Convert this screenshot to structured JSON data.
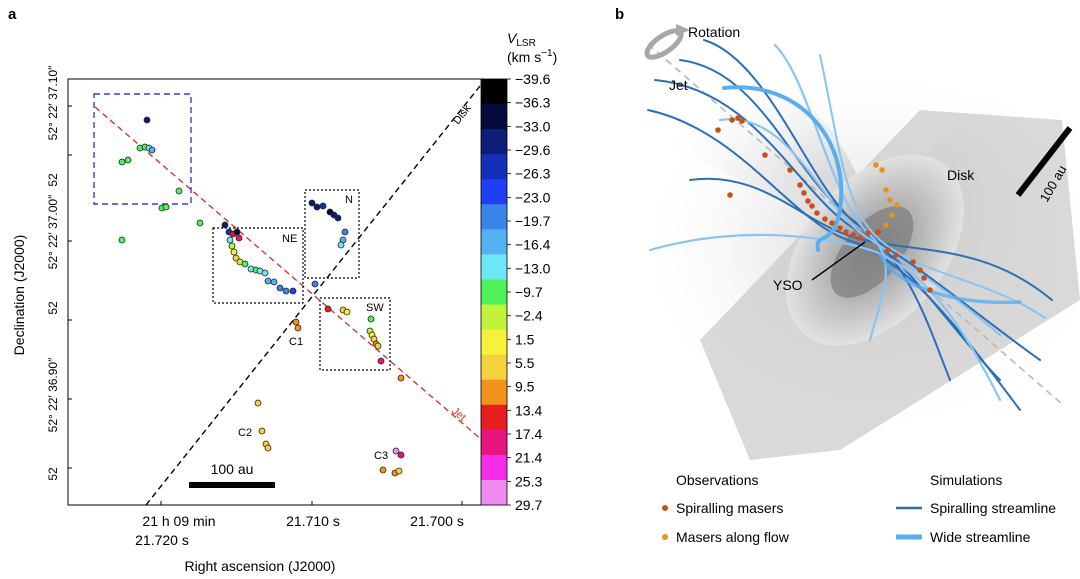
{
  "panels": {
    "a": {
      "letter": "a",
      "ylabel": "Declination (J2000)",
      "xlabel": "Right ascension (J2000)",
      "dec_ticks": [
        "52° 22′ 37.10″",
        "52",
        "52° 22′ 37.00″",
        "52",
        "52° 22′ 36.90″",
        "52"
      ],
      "ra_ticks": [
        {
          "line1": "21 h 09 min",
          "line2": "21.720 s"
        },
        {
          "line1": "21.710 s",
          "line2": ""
        },
        {
          "line1": "21.700 s",
          "line2": ""
        }
      ],
      "line_labels": {
        "disk": "Disk",
        "jet": "Jet"
      },
      "region_labels": {
        "ne": "NE",
        "n": "N",
        "sw": "SW"
      },
      "cluster_labels": {
        "c1": "C1",
        "c2": "C2",
        "c3": "C3"
      },
      "scalebar": "100 au",
      "colorbar": {
        "title_main": "V",
        "title_sub": "LSR",
        "title_unit": "(km s",
        "title_exp": "−1",
        "title_close": ")",
        "labels": [
          "−39.6",
          "−36.3",
          "−33.0",
          "−29.6",
          "−26.3",
          "−23.0",
          "−19.7",
          "−16.4",
          "−13.0",
          "−9.7",
          "−2.4",
          "1.5",
          "5.5",
          "9.5",
          "13.4",
          "17.4",
          "21.4",
          "25.3",
          "29.7"
        ],
        "colors": [
          "#000000",
          "#050a3c",
          "#0d1e78",
          "#1530b8",
          "#1f3ff5",
          "#3a86e8",
          "#54b2f2",
          "#6fe8f6",
          "#4ef25a",
          "#c2f23a",
          "#f6f23a",
          "#f4d23c",
          "#f3931f",
          "#e81e1e",
          "#e7157f",
          "#f52de8",
          "#f08cf0"
        ]
      }
    },
    "b": {
      "letter": "b",
      "labels": {
        "rotation": "Rotation",
        "jet": "Jet",
        "disk": "Disk",
        "yso": "YSO",
        "scalebar": "100 au"
      },
      "legend": {
        "obs_title": "Observations",
        "sim_title": "Simulations",
        "obs_items": [
          {
            "label": "Spiralling masers",
            "color": "#c8501a"
          },
          {
            "label": "Masers along flow",
            "color": "#e0961e"
          }
        ],
        "sim_items": [
          {
            "label": "Spiralling streamline",
            "color": "#2d6fb5"
          },
          {
            "label": "Wide streamline",
            "color": "#5aaef0"
          }
        ]
      }
    }
  }
}
